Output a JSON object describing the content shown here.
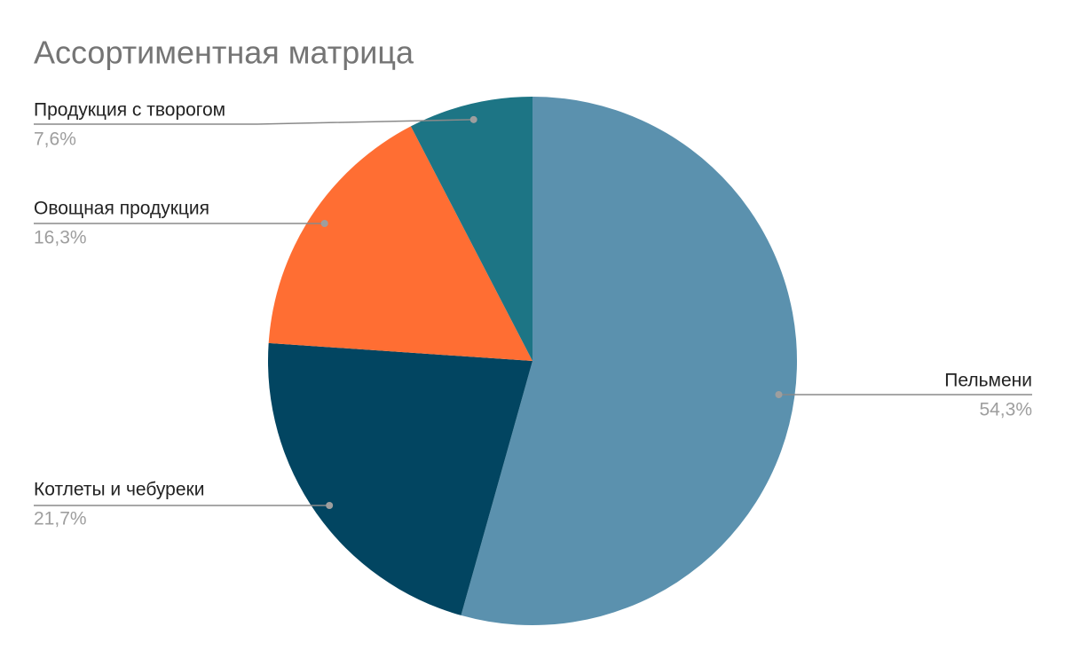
{
  "chart_data": {
    "type": "pie",
    "title": "Ассортиментная матрица",
    "categories": [
      "Пельмени",
      "Котлеты и чебуреки",
      "Овощная продукция",
      "Продукция с творогом"
    ],
    "values": [
      54.3,
      21.7,
      16.3,
      7.6
    ],
    "value_labels": [
      "54,3%",
      "21,7%",
      "16,3%",
      "7,6%"
    ],
    "colors": [
      "#5b91ae",
      "#024561",
      "#ff6e33",
      "#1d7585"
    ]
  }
}
